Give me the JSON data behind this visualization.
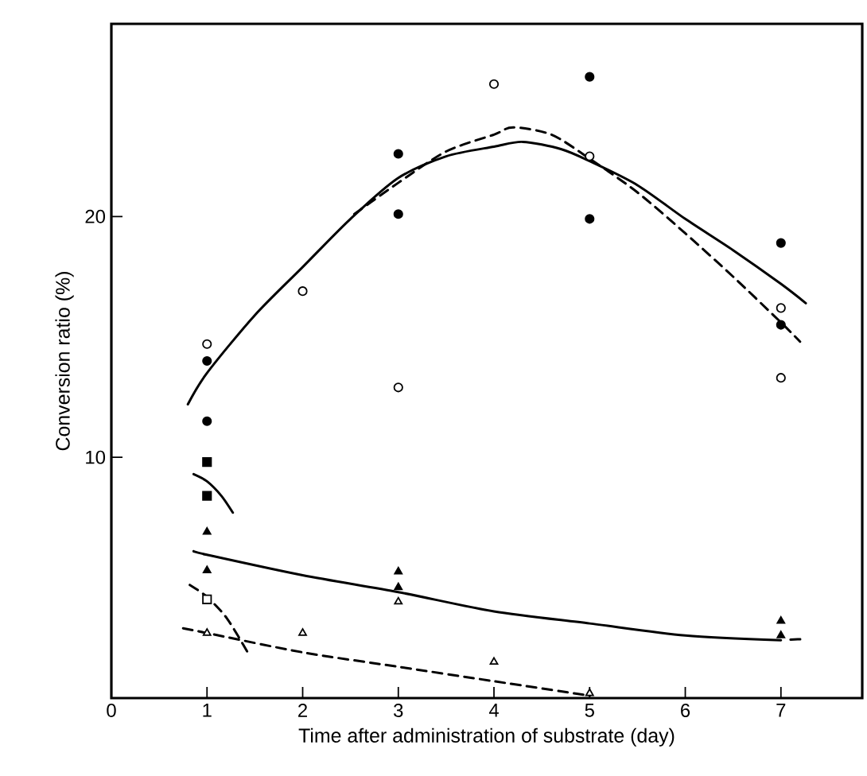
{
  "chart_data": {
    "type": "scatter",
    "xlabel": "Time after administration of substrate  (day)",
    "ylabel": "Conversion ratio (%)",
    "xlim": [
      0,
      7.85
    ],
    "ylim": [
      0,
      28
    ],
    "xticks": [
      0,
      1,
      2,
      3,
      4,
      5,
      6,
      7
    ],
    "yticks": [
      10,
      20
    ],
    "series": [
      {
        "marker": "circle",
        "color": "#000000",
        "x": [
          1,
          1,
          3,
          3,
          5,
          5,
          7,
          7
        ],
        "values": [
          14.0,
          11.5,
          22.6,
          20.1,
          25.8,
          19.9,
          18.9,
          15.5
        ]
      },
      {
        "marker": "circle",
        "color": "#ffffff",
        "x": [
          1,
          2,
          3,
          4,
          5,
          7,
          7
        ],
        "values": [
          14.7,
          16.9,
          12.9,
          25.5,
          22.5,
          16.2,
          13.3
        ]
      },
      {
        "marker": "square",
        "color": "#000000",
        "x": [
          1,
          1
        ],
        "values": [
          9.8,
          8.4
        ]
      },
      {
        "marker": "square",
        "color": "#ffffff",
        "x": [
          1
        ],
        "values": [
          4.1
        ]
      },
      {
        "marker": "triangle",
        "color": "#000000",
        "x": [
          1,
          1,
          3,
          3,
          7,
          7
        ],
        "values": [
          6.9,
          5.3,
          5.25,
          4.6,
          3.2,
          2.6
        ]
      },
      {
        "marker": "triangle",
        "color": "#ffffff",
        "x": [
          1,
          2,
          3,
          4,
          5
        ],
        "values": [
          2.7,
          2.7,
          4.0,
          1.5,
          0.2
        ]
      },
      {
        "type": "line",
        "line_style": "solid",
        "color": "#000000",
        "x": [
          0.8,
          1,
          1.5,
          2,
          2.5,
          3,
          3.5,
          4,
          4.3,
          4.7,
          5,
          5.5,
          6,
          6.5,
          7,
          7.26
        ],
        "values": [
          12.2,
          13.5,
          15.9,
          17.9,
          19.9,
          21.6,
          22.5,
          22.9,
          23.1,
          22.8,
          22.3,
          21.3,
          19.9,
          18.6,
          17.2,
          16.4
        ]
      },
      {
        "type": "line",
        "line_style": "dashed",
        "color": "#000000",
        "x": [
          2.54,
          3,
          3.5,
          4,
          4.2,
          4.6,
          5,
          5.5,
          6,
          6.5,
          7,
          7.2
        ],
        "values": [
          20.1,
          21.4,
          22.7,
          23.4,
          23.7,
          23.4,
          22.4,
          21.0,
          19.3,
          17.5,
          15.6,
          14.8
        ]
      },
      {
        "type": "line",
        "line_style": "solid",
        "color": "#000000",
        "x": [
          0.86,
          1,
          1.15,
          1.27
        ],
        "values": [
          9.3,
          9.0,
          8.4,
          7.7
        ]
      },
      {
        "type": "line",
        "line_style": "solid",
        "color": "#000000",
        "x": [
          0.86,
          1,
          2,
          3,
          4,
          5,
          6,
          7
        ],
        "values": [
          6.1,
          5.95,
          5.1,
          4.4,
          3.6,
          3.1,
          2.6,
          2.4
        ]
      },
      {
        "type": "line",
        "line_style": "dashed",
        "color": "#000000",
        "x": [
          7.1,
          7.25
        ],
        "values": [
          2.43,
          2.45
        ]
      },
      {
        "type": "line",
        "line_style": "dashed",
        "color": "#000000",
        "x": [
          0.82,
          1,
          1.21,
          1.44
        ],
        "values": [
          4.7,
          4.2,
          3.3,
          1.8
        ]
      },
      {
        "type": "line",
        "line_style": "dashed",
        "color": "#000000",
        "x": [
          0.75,
          1,
          2,
          3,
          4,
          5
        ],
        "values": [
          2.9,
          2.7,
          1.9,
          1.3,
          0.7,
          0.1
        ]
      }
    ]
  }
}
